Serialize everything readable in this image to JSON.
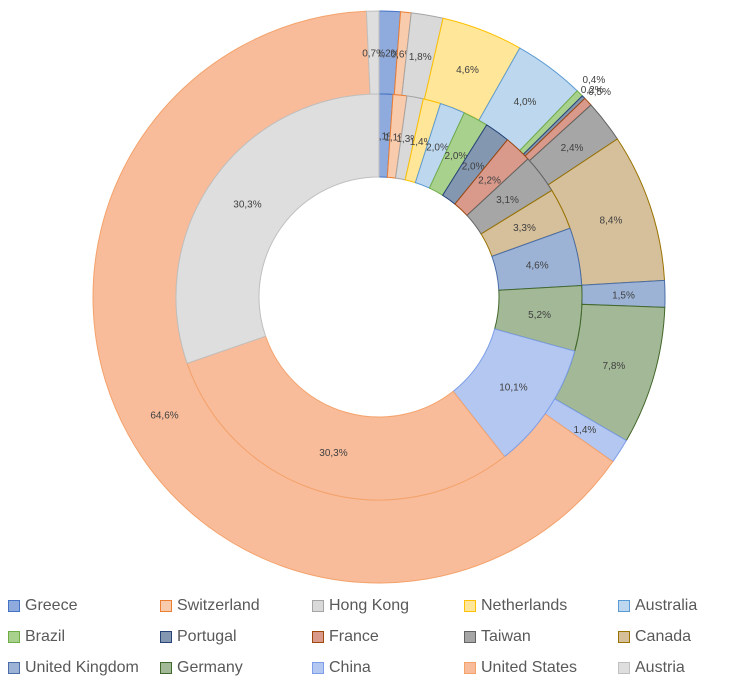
{
  "chart_data": {
    "type": "doughnut",
    "legend_position": "bottom",
    "legend": [
      {
        "name": "Greece",
        "color": "#8faadc",
        "border": "#4472c4"
      },
      {
        "name": "Switzerland",
        "color": "#f8cbad",
        "border": "#ed7d31"
      },
      {
        "name": "Hong Kong",
        "color": "#d9d9d9",
        "border": "#a5a5a5"
      },
      {
        "name": "Netherlands",
        "color": "#ffe699",
        "border": "#ffc000"
      },
      {
        "name": "Australia",
        "color": "#bdd7ee",
        "border": "#5b9bd5"
      },
      {
        "name": "Brazil",
        "color": "#a9d18e",
        "border": "#70ad47"
      },
      {
        "name": "Portugal",
        "color": "#8497b0",
        "border": "#264478"
      },
      {
        "name": "France",
        "color": "#d99a8c",
        "border": "#9e480e"
      },
      {
        "name": "Taiwan",
        "color": "#a6a6a6",
        "border": "#636363"
      },
      {
        "name": "Canada",
        "color": "#d6bf9b",
        "border": "#997300"
      },
      {
        "name": "United Kingdom",
        "color": "#9db3d6",
        "border": "#4a6ea8"
      },
      {
        "name": "Germany",
        "color": "#a3b897",
        "border": "#43682b"
      },
      {
        "name": "China",
        "color": "#b4c7f0",
        "border": "#7c9ee8"
      },
      {
        "name": "United States",
        "color": "#f8bc9a",
        "border": "#f4a26b"
      },
      {
        "name": "Austria",
        "color": "#dedede",
        "border": "#bfbfbf"
      }
    ],
    "rings": [
      {
        "ring": "outer",
        "slices": [
          {
            "category": "Greece",
            "value": 1.2,
            "label": "1,2%"
          },
          {
            "category": "Switzerland",
            "value": 0.6,
            "label": "0,6%"
          },
          {
            "category": "Hong Kong",
            "value": 1.8,
            "label": "1,8%"
          },
          {
            "category": "Netherlands",
            "value": 4.6,
            "label": "4,6%"
          },
          {
            "category": "Australia",
            "value": 4.0,
            "label": "4,0%"
          },
          {
            "category": "Brazil",
            "value": 0.4,
            "label": "0,4%"
          },
          {
            "category": "Portugal",
            "value": 0.2,
            "label": "0,2%"
          },
          {
            "category": "France",
            "value": 0.5,
            "label": "0,5%"
          },
          {
            "category": "Taiwan",
            "value": 2.4,
            "label": "2,4%"
          },
          {
            "category": "Canada",
            "value": 8.4,
            "label": "8,4%"
          },
          {
            "category": "United Kingdom",
            "value": 1.5,
            "label": "1,5%"
          },
          {
            "category": "Germany",
            "value": 7.8,
            "label": "7,8%"
          },
          {
            "category": "China",
            "value": 1.4,
            "label": "1,4%"
          },
          {
            "category": "United States",
            "value": 64.6,
            "label": "64,6%"
          },
          {
            "category": "Austria",
            "value": 0.7,
            "label": "0,7%"
          }
        ]
      },
      {
        "ring": "inner",
        "slices": [
          {
            "category": "Greece",
            "value": 1.1,
            "label": "1,1%"
          },
          {
            "category": "Switzerland",
            "value": 1.1,
            "label": "1,1%"
          },
          {
            "category": "Hong Kong",
            "value": 1.3,
            "label": "1,3%"
          },
          {
            "category": "Netherlands",
            "value": 1.4,
            "label": "1,4%"
          },
          {
            "category": "Australia",
            "value": 2.0,
            "label": "2,0%"
          },
          {
            "category": "Brazil",
            "value": 2.0,
            "label": "2,0%"
          },
          {
            "category": "Portugal",
            "value": 2.0,
            "label": "2,0%"
          },
          {
            "category": "France",
            "value": 2.2,
            "label": "2,2%"
          },
          {
            "category": "Taiwan",
            "value": 3.1,
            "label": "3,1%"
          },
          {
            "category": "Canada",
            "value": 3.3,
            "label": "3,3%"
          },
          {
            "category": "United Kingdom",
            "value": 4.6,
            "label": "4,6%"
          },
          {
            "category": "Germany",
            "value": 5.2,
            "label": "5,2%"
          },
          {
            "category": "China",
            "value": 10.1,
            "label": "10,1%"
          },
          {
            "category": "United States",
            "value": 30.3,
            "label": "30,3%"
          },
          {
            "category": "Austria",
            "value": 30.3,
            "label": "30,3%"
          }
        ]
      }
    ]
  }
}
